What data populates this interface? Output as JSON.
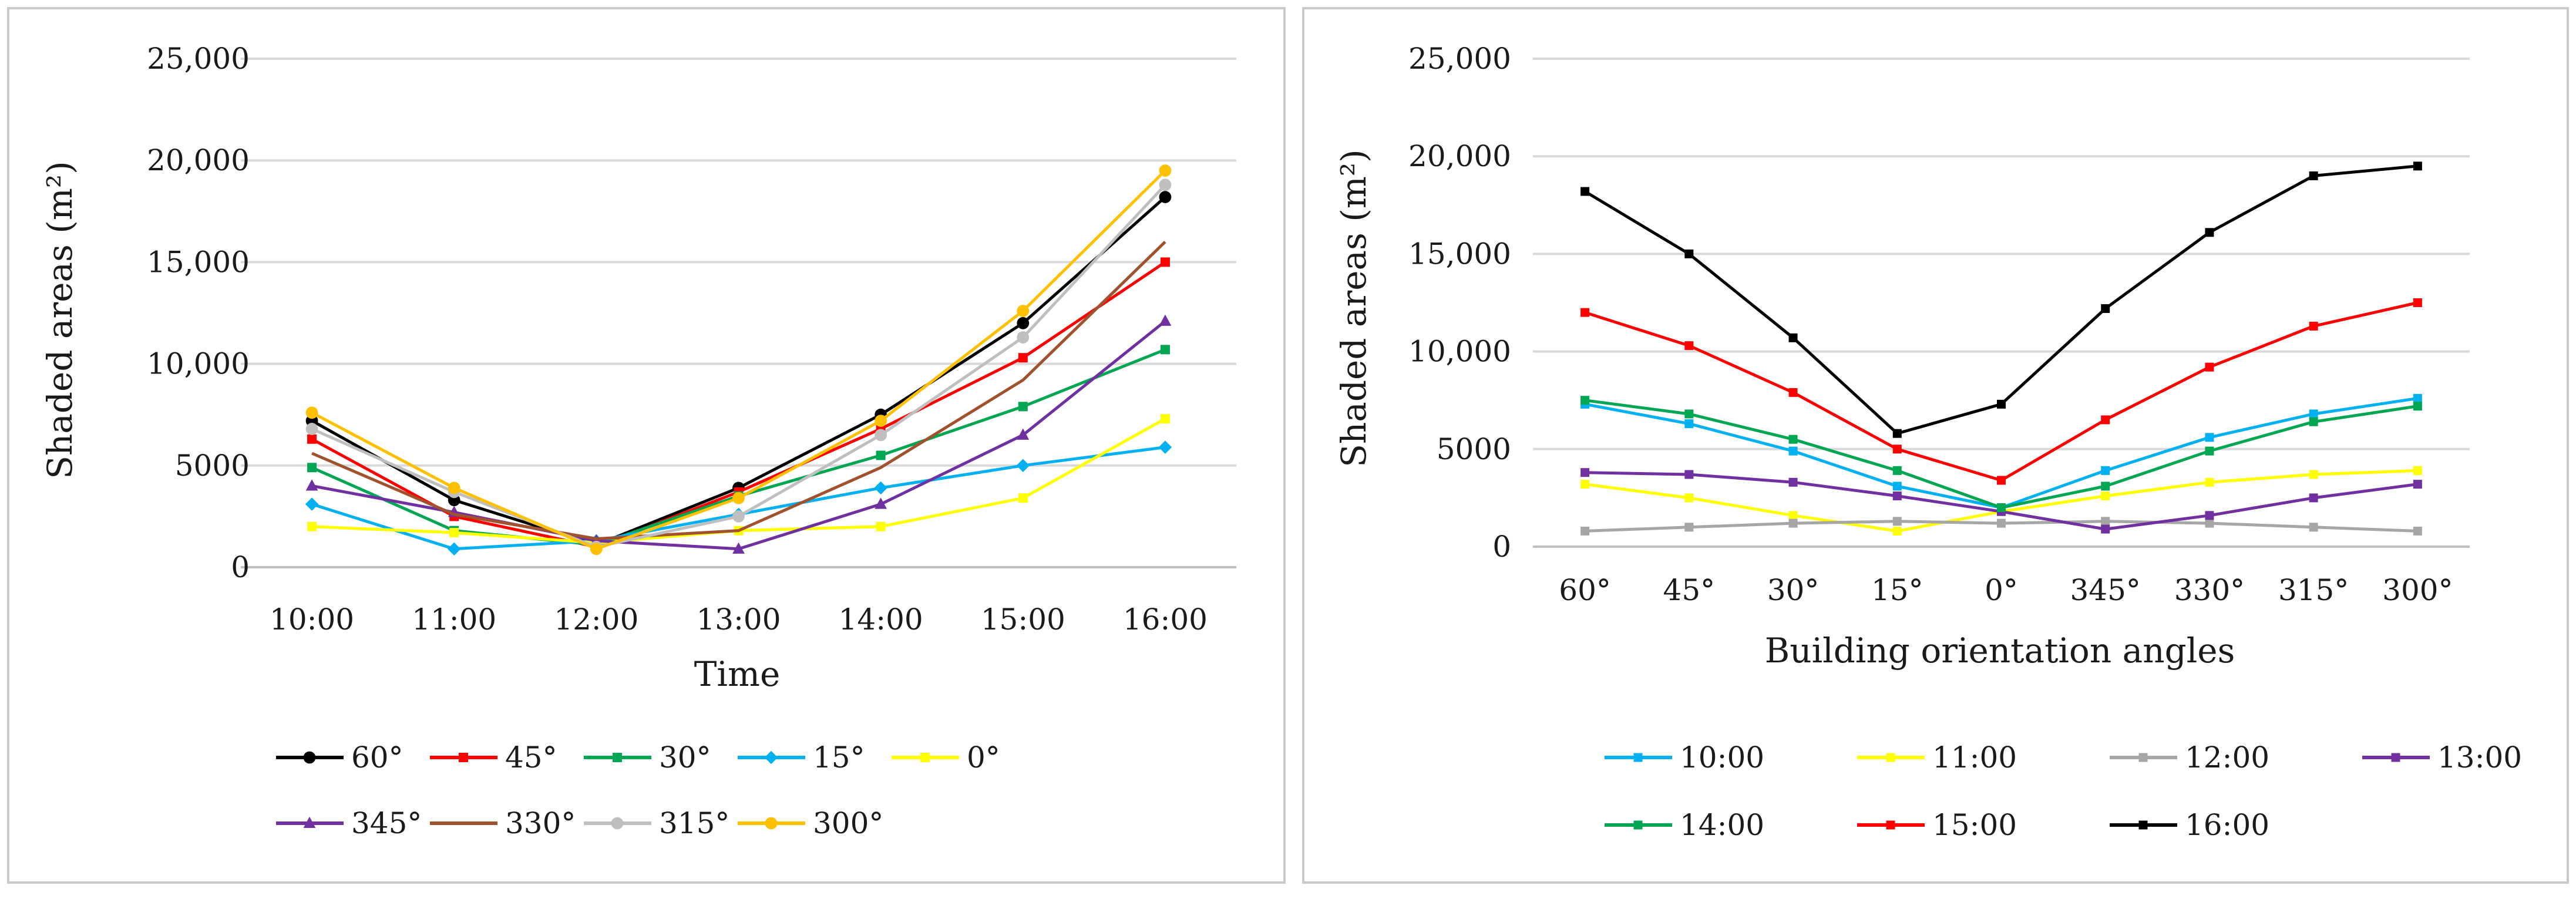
{
  "chart_data": [
    {
      "type": "line",
      "title": "",
      "xlabel": "Time",
      "ylabel": "Shaded areas (m²)",
      "ylim": [
        0,
        25000
      ],
      "yticks": [
        0,
        5000,
        10000,
        15000,
        20000,
        25000
      ],
      "ytick_labels": [
        "0",
        "5000",
        "10,000",
        "15,000",
        "20,000",
        "25,000"
      ],
      "grid": true,
      "legend_position": "bottom",
      "categories": [
        "10:00",
        "11:00",
        "12:00",
        "13:00",
        "14:00",
        "15:00",
        "16:00"
      ],
      "series": [
        {
          "name": "60°",
          "color": "#000000",
          "marker": "circle",
          "values": [
            7200,
            3300,
            1100,
            3900,
            7500,
            12000,
            18200
          ]
        },
        {
          "name": "45°",
          "color": "#ff0000",
          "marker": "square",
          "values": [
            6300,
            2500,
            1000,
            3700,
            6800,
            10300,
            15000
          ]
        },
        {
          "name": "30°",
          "color": "#00a651",
          "marker": "square",
          "values": [
            4900,
            1800,
            1100,
            3500,
            5500,
            7900,
            10700
          ]
        },
        {
          "name": "15°",
          "color": "#00b0f0",
          "marker": "diamond",
          "values": [
            3100,
            900,
            1300,
            2600,
            3900,
            5000,
            5900
          ]
        },
        {
          "name": "0°",
          "color": "#ffff00",
          "marker": "square",
          "values": [
            2000,
            1700,
            1200,
            1800,
            2000,
            3400,
            7300
          ]
        },
        {
          "name": "345°",
          "color": "#7030a0",
          "marker": "triangle",
          "values": [
            4000,
            2700,
            1300,
            900,
            3100,
            6500,
            12100
          ]
        },
        {
          "name": "330°",
          "color": "#a0522d",
          "marker": "none",
          "values": [
            5600,
            2600,
            1400,
            1800,
            4900,
            9200,
            16000
          ]
        },
        {
          "name": "315°",
          "color": "#bfbfbf",
          "marker": "circle",
          "values": [
            6800,
            3700,
            1000,
            2500,
            6500,
            11300,
            18800
          ]
        },
        {
          "name": "300°",
          "color": "#ffc000",
          "marker": "circle",
          "values": [
            7600,
            3900,
            900,
            3400,
            7200,
            12600,
            19500
          ]
        }
      ]
    },
    {
      "type": "line",
      "title": "",
      "xlabel": "Building orientation angles",
      "ylabel": "Shaded areas  (m²)",
      "ylim": [
        0,
        25000
      ],
      "yticks": [
        0,
        5000,
        10000,
        15000,
        20000,
        25000
      ],
      "ytick_labels": [
        "0",
        "5000",
        "10,000",
        "15,000",
        "20,000",
        "25,000"
      ],
      "grid": true,
      "legend_position": "bottom",
      "categories": [
        "60°",
        "45°",
        "30°",
        "15°",
        "0°",
        "345°",
        "330°",
        "315°",
        "300°"
      ],
      "series": [
        {
          "name": "10:00",
          "color": "#00b0f0",
          "marker": "square",
          "values": [
            7300,
            6300,
            4900,
            3100,
            2000,
            3900,
            5600,
            6800,
            7600
          ]
        },
        {
          "name": "11:00",
          "color": "#ffff00",
          "marker": "square",
          "values": [
            3200,
            2500,
            1600,
            800,
            1800,
            2600,
            3300,
            3700,
            3900
          ]
        },
        {
          "name": "12:00",
          "color": "#a6a6a6",
          "marker": "square",
          "values": [
            800,
            1000,
            1200,
            1300,
            1200,
            1300,
            1200,
            1000,
            800
          ]
        },
        {
          "name": "13:00",
          "color": "#7030a0",
          "marker": "square",
          "values": [
            3800,
            3700,
            3300,
            2600,
            1800,
            900,
            1600,
            2500,
            3200
          ]
        },
        {
          "name": "14:00",
          "color": "#00a651",
          "marker": "square",
          "values": [
            7500,
            6800,
            5500,
            3900,
            2000,
            3100,
            4900,
            6400,
            7200
          ]
        },
        {
          "name": "15:00",
          "color": "#ff0000",
          "marker": "square",
          "values": [
            12000,
            10300,
            7900,
            5000,
            3400,
            6500,
            9200,
            11300,
            12500
          ]
        },
        {
          "name": "16:00",
          "color": "#000000",
          "marker": "square",
          "values": [
            18200,
            15000,
            10700,
            5800,
            7300,
            12200,
            16100,
            19000,
            19500
          ]
        }
      ]
    }
  ]
}
